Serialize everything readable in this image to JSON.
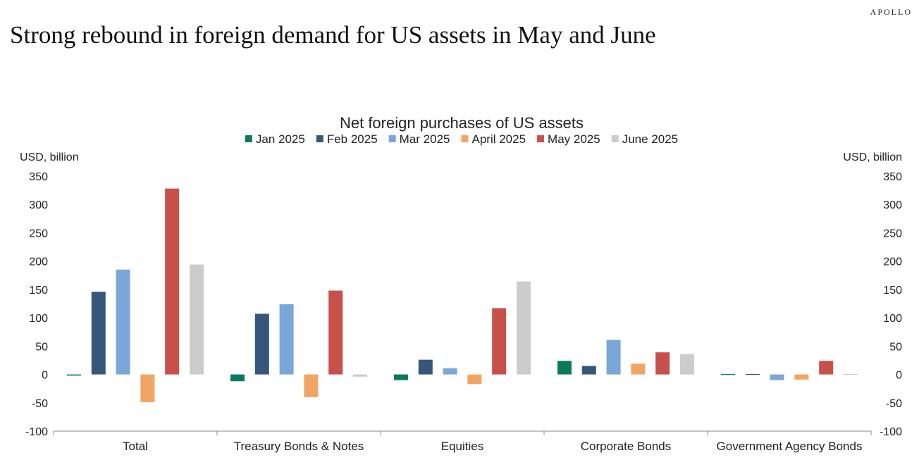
{
  "brand": "APOLLO",
  "headline": "Strong rebound in foreign demand for US assets in May and June",
  "chart_data": {
    "type": "bar",
    "title": "Net foreign purchases of US assets",
    "ylabel_left": "USD, billion",
    "ylabel_right": "USD, billion",
    "ylim": [
      -100,
      350
    ],
    "yticks": [
      -100,
      -50,
      0,
      50,
      100,
      150,
      200,
      250,
      300,
      350
    ],
    "legend_position": "top-center",
    "categories": [
      "Total",
      "Treasury Bonds & Notes",
      "Equities",
      "Corporate Bonds",
      "Government Agency Bonds"
    ],
    "series": [
      {
        "name": "Jan 2025",
        "color": "#0a7a5c",
        "values": [
          -2,
          -12,
          -10,
          24,
          1
        ]
      },
      {
        "name": "Feb 2025",
        "color": "#365779",
        "values": [
          146,
          107,
          26,
          15,
          1
        ]
      },
      {
        "name": "Mar 2025",
        "color": "#79a7d8",
        "values": [
          185,
          124,
          11,
          61,
          -10
        ]
      },
      {
        "name": "April 2025",
        "color": "#f1a564",
        "values": [
          -49,
          -40,
          -17,
          19,
          -9
        ]
      },
      {
        "name": "May 2025",
        "color": "#c8504b",
        "values": [
          328,
          148,
          117,
          39,
          24
        ]
      },
      {
        "name": "June 2025",
        "color": "#cccccc",
        "values": [
          194,
          -4,
          164,
          36,
          0
        ]
      }
    ]
  }
}
